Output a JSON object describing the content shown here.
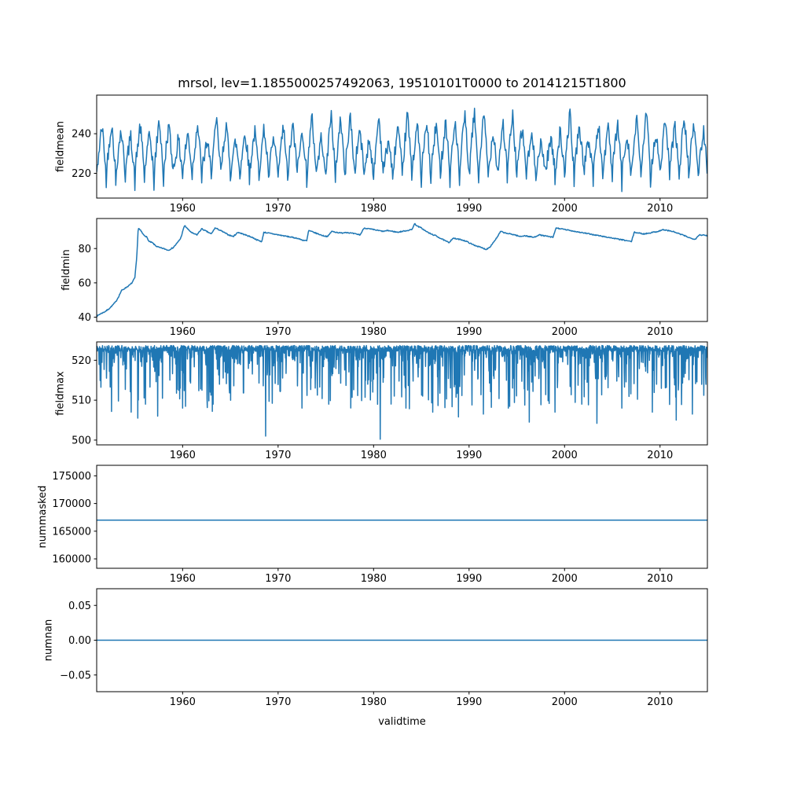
{
  "figure": {
    "title": "mrsol, lev=1.1855000257492063, 19510101T0000 to 20141215T1800",
    "xlabel": "validtime",
    "background": "#ffffff",
    "line_color": "#1f77b4",
    "axis_color": "#000000"
  },
  "chart_data": [
    {
      "type": "line",
      "name": "fieldmean",
      "ylabel": "fieldmean",
      "description": "Noisy seasonal time series oscillating between about 211 and 257",
      "x_range": [
        1951.0,
        2014.96
      ],
      "xticks": [
        1960,
        1970,
        1980,
        1990,
        2000,
        2010
      ],
      "xticklabels": [
        "1960",
        "1970",
        "1980",
        "1990",
        "2000",
        "2010"
      ],
      "ylim": [
        207.5,
        259.5
      ],
      "yticks": [
        220,
        240
      ],
      "yticklabels": [
        "220",
        "240"
      ],
      "series": {
        "kind": "seasonal_noise",
        "seed": 42,
        "points_per_year": 14,
        "base": 221,
        "amp_min": 13,
        "amp_max": 30,
        "noise": 4,
        "trough_extra": 7
      }
    },
    {
      "type": "line",
      "name": "fieldmin",
      "ylabel": "fieldmin",
      "description": "Starts near 40 in 1951, climbs steeply to ~92 by 1955, then fluctuates between ~79 and ~95 through 2014",
      "x_range": [
        1951.0,
        2014.96
      ],
      "xticks": [
        1960,
        1970,
        1980,
        1990,
        2000,
        2010
      ],
      "xticklabels": [
        "1960",
        "1970",
        "1980",
        "1990",
        "2000",
        "2010"
      ],
      "ylim": [
        37.5,
        97.5
      ],
      "yticks": [
        40,
        60,
        80
      ],
      "yticklabels": [
        "40",
        "60",
        "80"
      ],
      "series": {
        "kind": "anchors",
        "seed": 7,
        "points_per_year": 18,
        "noise": 0.3,
        "anchors": [
          [
            1951.0,
            40.5
          ],
          [
            1951.4,
            42.0
          ],
          [
            1951.8,
            43.0
          ],
          [
            1952.2,
            44.5
          ],
          [
            1952.5,
            46.0
          ],
          [
            1953.0,
            49.0
          ],
          [
            1953.3,
            52.0
          ],
          [
            1953.6,
            55.5
          ],
          [
            1954.0,
            57.0
          ],
          [
            1954.4,
            58.5
          ],
          [
            1954.7,
            60.0
          ],
          [
            1955.0,
            63.0
          ],
          [
            1955.2,
            75.0
          ],
          [
            1955.35,
            92.0
          ],
          [
            1955.6,
            90.5
          ],
          [
            1955.9,
            88.0
          ],
          [
            1956.2,
            87.0
          ],
          [
            1956.5,
            84.0
          ],
          [
            1956.8,
            83.5
          ],
          [
            1957.2,
            81.5
          ],
          [
            1957.6,
            80.5
          ],
          [
            1958.0,
            80.0
          ],
          [
            1958.5,
            79.0
          ],
          [
            1959.0,
            80.5
          ],
          [
            1959.4,
            83.0
          ],
          [
            1959.8,
            86.0
          ],
          [
            1960.2,
            93.5
          ],
          [
            1960.6,
            91.0
          ],
          [
            1961.0,
            89.0
          ],
          [
            1961.5,
            88.0
          ],
          [
            1962.0,
            91.5
          ],
          [
            1962.5,
            90.0
          ],
          [
            1963.0,
            88.5
          ],
          [
            1963.4,
            92.0
          ],
          [
            1963.8,
            91.0
          ],
          [
            1964.3,
            89.5
          ],
          [
            1964.8,
            88.0
          ],
          [
            1965.3,
            87.0
          ],
          [
            1965.8,
            89.5
          ],
          [
            1966.3,
            88.5
          ],
          [
            1966.8,
            87.5
          ],
          [
            1967.3,
            86.5
          ],
          [
            1967.8,
            85.0
          ],
          [
            1968.3,
            84.0
          ],
          [
            1968.5,
            89.5
          ],
          [
            1969.0,
            89.0
          ],
          [
            1969.5,
            88.5
          ],
          [
            1970.0,
            88.0
          ],
          [
            1970.5,
            87.5
          ],
          [
            1971.0,
            87.0
          ],
          [
            1971.5,
            86.5
          ],
          [
            1972.0,
            86.0
          ],
          [
            1972.5,
            85.0
          ],
          [
            1973.0,
            84.5
          ],
          [
            1973.2,
            90.5
          ],
          [
            1973.7,
            89.5
          ],
          [
            1974.2,
            88.5
          ],
          [
            1974.7,
            87.5
          ],
          [
            1975.2,
            87.0
          ],
          [
            1975.6,
            90.0
          ],
          [
            1976.1,
            89.5
          ],
          [
            1976.6,
            89.0
          ],
          [
            1977.1,
            89.5
          ],
          [
            1977.6,
            89.0
          ],
          [
            1978.1,
            88.5
          ],
          [
            1978.6,
            88.0
          ],
          [
            1979.0,
            92.0
          ],
          [
            1979.5,
            91.5
          ],
          [
            1980.0,
            91.0
          ],
          [
            1980.5,
            90.5
          ],
          [
            1981.0,
            90.0
          ],
          [
            1981.5,
            90.5
          ],
          [
            1982.0,
            90.0
          ],
          [
            1982.5,
            89.5
          ],
          [
            1983.0,
            90.0
          ],
          [
            1983.5,
            90.5
          ],
          [
            1984.0,
            91.0
          ],
          [
            1984.3,
            94.5
          ],
          [
            1984.6,
            93.0
          ],
          [
            1985.0,
            92.0
          ],
          [
            1985.5,
            90.0
          ],
          [
            1986.0,
            88.5
          ],
          [
            1986.5,
            87.5
          ],
          [
            1987.0,
            86.0
          ],
          [
            1987.5,
            84.5
          ],
          [
            1987.9,
            83.5
          ],
          [
            1988.3,
            86.0
          ],
          [
            1988.8,
            85.5
          ],
          [
            1989.3,
            85.0
          ],
          [
            1989.8,
            84.0
          ],
          [
            1990.3,
            82.5
          ],
          [
            1990.8,
            81.5
          ],
          [
            1991.3,
            80.5
          ],
          [
            1991.8,
            79.5
          ],
          [
            1992.2,
            81.0
          ],
          [
            1992.6,
            84.0
          ],
          [
            1993.0,
            87.0
          ],
          [
            1993.3,
            90.0
          ],
          [
            1993.8,
            89.0
          ],
          [
            1994.3,
            88.5
          ],
          [
            1994.8,
            88.0
          ],
          [
            1995.3,
            87.0
          ],
          [
            1995.8,
            87.5
          ],
          [
            1996.3,
            87.0
          ],
          [
            1996.8,
            86.5
          ],
          [
            1997.3,
            88.0
          ],
          [
            1997.8,
            87.5
          ],
          [
            1998.3,
            87.0
          ],
          [
            1998.8,
            86.5
          ],
          [
            1999.1,
            92.0
          ],
          [
            1999.6,
            91.5
          ],
          [
            2000.1,
            91.0
          ],
          [
            2000.6,
            90.5
          ],
          [
            2001.1,
            90.0
          ],
          [
            2001.6,
            89.5
          ],
          [
            2002.1,
            89.0
          ],
          [
            2002.6,
            88.5
          ],
          [
            2003.1,
            88.0
          ],
          [
            2003.6,
            87.5
          ],
          [
            2004.1,
            87.0
          ],
          [
            2004.6,
            86.5
          ],
          [
            2005.1,
            86.0
          ],
          [
            2005.6,
            85.5
          ],
          [
            2006.1,
            85.0
          ],
          [
            2006.6,
            84.5
          ],
          [
            2007.0,
            84.0
          ],
          [
            2007.3,
            89.5
          ],
          [
            2007.8,
            89.0
          ],
          [
            2008.3,
            88.5
          ],
          [
            2008.8,
            89.0
          ],
          [
            2009.3,
            89.5
          ],
          [
            2009.8,
            90.0
          ],
          [
            2010.3,
            91.0
          ],
          [
            2010.8,
            90.5
          ],
          [
            2011.3,
            90.0
          ],
          [
            2011.8,
            89.0
          ],
          [
            2012.3,
            88.0
          ],
          [
            2012.8,
            87.0
          ],
          [
            2013.2,
            86.0
          ],
          [
            2013.7,
            85.5
          ],
          [
            2014.1,
            88.0
          ],
          [
            2014.5,
            87.8
          ],
          [
            2014.96,
            87.5
          ]
        ]
      }
    },
    {
      "type": "line",
      "name": "fieldmax",
      "ylabel": "fieldmax",
      "description": "Baseline near 523 with frequent sharp downward spikes, deepest to ~500 near 1968 and 1980",
      "x_range": [
        1951.0,
        2014.96
      ],
      "xticks": [
        1960,
        1970,
        1980,
        1990,
        2000,
        2010
      ],
      "xticklabels": [
        "1960",
        "1970",
        "1980",
        "1990",
        "2000",
        "2010"
      ],
      "ylim": [
        498.8,
        524.6
      ],
      "yticks": [
        500,
        510,
        520
      ],
      "yticklabels": [
        "500",
        "510",
        "520"
      ],
      "series": {
        "kind": "baseline_spikes",
        "seed": 11,
        "points_per_year": 36,
        "baseline_min": 522.2,
        "baseline_max": 523.7,
        "spike_prob": 0.32,
        "spike_scale": 14,
        "deep_spikes": [
          [
            1954.6,
            507.0
          ],
          [
            1955.3,
            505.5
          ],
          [
            1956.1,
            509.0
          ],
          [
            1957.4,
            506.0
          ],
          [
            1960.0,
            508.0
          ],
          [
            1963.2,
            509.0
          ],
          [
            1968.7,
            501.0
          ],
          [
            1972.5,
            508.0
          ],
          [
            1975.3,
            509.0
          ],
          [
            1980.7,
            500.2
          ],
          [
            1983.4,
            508.0
          ],
          [
            1986.2,
            507.0
          ],
          [
            1988.9,
            505.8
          ],
          [
            1991.5,
            506.5
          ],
          [
            1994.1,
            508.0
          ],
          [
            1996.3,
            504.5
          ],
          [
            1999.0,
            507.0
          ],
          [
            2001.8,
            509.0
          ],
          [
            2003.4,
            504.2
          ],
          [
            2006.0,
            508.0
          ],
          [
            2009.2,
            507.0
          ],
          [
            2011.7,
            505.0
          ],
          [
            2013.4,
            506.5
          ]
        ]
      }
    },
    {
      "type": "line",
      "name": "nummasked",
      "ylabel": "nummasked",
      "description": "Constant value for the whole period",
      "x_range": [
        1951.0,
        2014.96
      ],
      "xticks": [
        1960,
        1970,
        1980,
        1990,
        2000,
        2010
      ],
      "xticklabels": [
        "1960",
        "1970",
        "1980",
        "1990",
        "2000",
        "2010"
      ],
      "ylim": [
        158300,
        176900
      ],
      "yticks": [
        160000,
        165000,
        170000,
        175000
      ],
      "yticklabels": [
        "160000",
        "165000",
        "170000",
        "175000"
      ],
      "series": {
        "kind": "constant",
        "value": 167000
      }
    },
    {
      "type": "line",
      "name": "numnan",
      "ylabel": "numnan",
      "description": "Constant zero for the whole period",
      "x_range": [
        1951.0,
        2014.96
      ],
      "xticks": [
        1960,
        1970,
        1980,
        1990,
        2000,
        2010
      ],
      "xticklabels": [
        "1960",
        "1970",
        "1980",
        "1990",
        "2000",
        "2010"
      ],
      "ylim": [
        -0.074,
        0.074
      ],
      "yticks": [
        -0.05,
        0.0,
        0.05
      ],
      "yticklabels": [
        "−0.05",
        "0.00",
        "0.05"
      ],
      "series": {
        "kind": "constant",
        "value": 0
      }
    }
  ]
}
